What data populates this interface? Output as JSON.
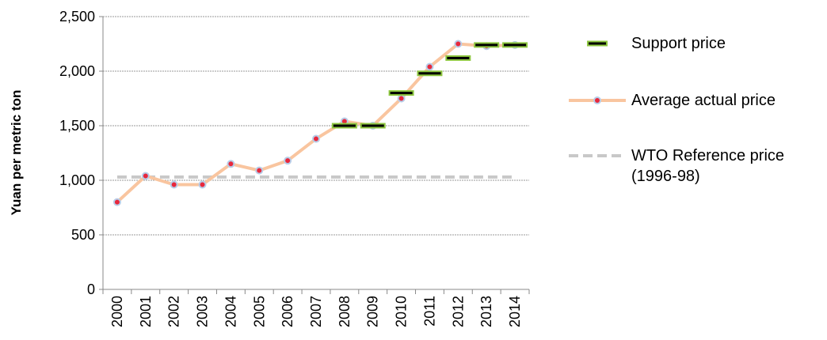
{
  "chart_data": {
    "type": "line",
    "y_label": "Yuan per metric ton",
    "categories": [
      "2000",
      "2001",
      "2002",
      "2003",
      "2004",
      "2005",
      "2006",
      "2007",
      "2008",
      "2009",
      "2010",
      "2011",
      "2012",
      "2013",
      "2014"
    ],
    "series": [
      {
        "name": "Support price",
        "style": "dash-marker",
        "color": "#000000",
        "edge_color": "#8dc63f",
        "values": [
          null,
          null,
          null,
          null,
          null,
          null,
          null,
          null,
          1500,
          1500,
          1800,
          1980,
          2120,
          2240,
          2240
        ]
      },
      {
        "name": "Average actual price",
        "style": "line",
        "color": "#f9c59f",
        "marker_color": "#e8283c",
        "edge_color": "#b7cde8",
        "values": [
          800,
          1040,
          960,
          960,
          1150,
          1090,
          1180,
          1380,
          1540,
          1500,
          1750,
          2040,
          2250,
          2230,
          2240
        ]
      }
    ],
    "reference": {
      "name": "WTO Reference price (1996-98)",
      "value": 1030,
      "color": "#c8c8c8"
    },
    "ylim": [
      0,
      2500
    ],
    "yticks": [
      0,
      500,
      {
        "value": 1000,
        "label": "1,000"
      },
      {
        "value": 1500,
        "label": "1,500"
      },
      {
        "value": 2000,
        "label": "2,000"
      },
      {
        "value": 2500,
        "label": "2,500"
      }
    ],
    "grid": true,
    "legend": "right"
  }
}
